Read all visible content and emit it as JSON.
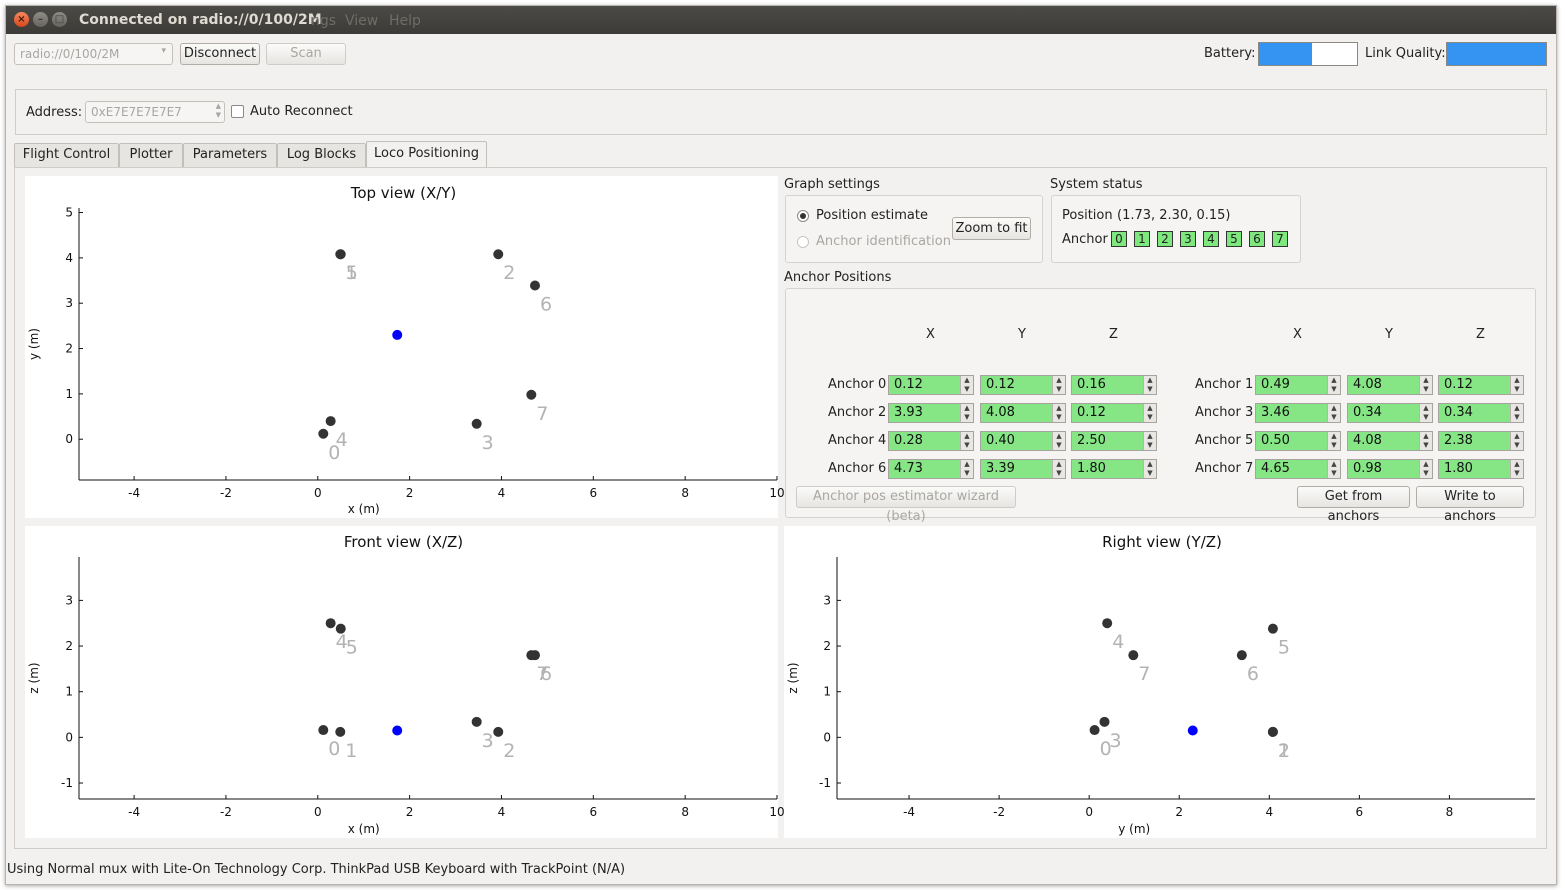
{
  "window": {
    "title": "Connected on radio://0/100/2M",
    "menus": [
      "ngs",
      "View",
      "Help"
    ]
  },
  "toolbar": {
    "radio_uri": "radio://0/100/2M",
    "disconnect": "Disconnect",
    "scan": "Scan",
    "battery_label": "Battery:",
    "battery_level": 0.54,
    "link_label": "Link Quality:",
    "link_level": 1.0
  },
  "address": {
    "label": "Address:",
    "value": "0xE7E7E7E7E7",
    "auto_reconnect": "Auto Reconnect"
  },
  "tabs": [
    "Flight Control",
    "Plotter",
    "Parameters",
    "Log Blocks",
    "Loco Positioning"
  ],
  "graph_settings": {
    "title": "Graph settings",
    "position_estimate": "Position estimate",
    "anchor_identification": "Anchor identification",
    "zoom_to_fit": "Zoom to fit"
  },
  "system_status": {
    "title": "System status",
    "position_label": "Position",
    "position_value": "(1.73, 2.30, 0.15)",
    "anchor_label": "Anchor",
    "anchors": [
      "0",
      "1",
      "2",
      "3",
      "4",
      "5",
      "6",
      "7"
    ]
  },
  "anchor_positions": {
    "title": "Anchor Positions",
    "col_x": "X",
    "col_y": "Y",
    "col_z": "Z",
    "rows": [
      {
        "name": "Anchor 0",
        "x": "0.12",
        "y": "0.12",
        "z": "0.16"
      },
      {
        "name": "Anchor 1",
        "x": "0.49",
        "y": "4.08",
        "z": "0.12"
      },
      {
        "name": "Anchor 2",
        "x": "3.93",
        "y": "4.08",
        "z": "0.12"
      },
      {
        "name": "Anchor 3",
        "x": "3.46",
        "y": "0.34",
        "z": "0.34"
      },
      {
        "name": "Anchor 4",
        "x": "0.28",
        "y": "0.40",
        "z": "2.50"
      },
      {
        "name": "Anchor 5",
        "x": "0.50",
        "y": "4.08",
        "z": "2.38"
      },
      {
        "name": "Anchor 6",
        "x": "4.73",
        "y": "3.39",
        "z": "1.80"
      },
      {
        "name": "Anchor 7",
        "x": "4.65",
        "y": "0.98",
        "z": "1.80"
      }
    ],
    "wizard": "Anchor pos estimator wizard (beta)",
    "get_from_anchors": "Get from anchors",
    "write_to_anchors": "Write to anchors"
  },
  "status_bar": "Using Normal mux with Lite-On Technology Corp. ThinkPad USB Keyboard with TrackPoint (N/A)",
  "chart_data": [
    {
      "type": "scatter",
      "title": "Top view (X/Y)",
      "xlabel": "x (m)",
      "ylabel": "y (m)",
      "xticks": [
        "-4",
        "-2",
        "0",
        "2",
        "4",
        "6",
        "8",
        "10"
      ],
      "yticks": [
        "0",
        "1",
        "2",
        "3",
        "4",
        "5"
      ],
      "xlim": [
        -5.2,
        10
      ],
      "ylim": [
        -0.9,
        5.1
      ],
      "anchor_points": [
        {
          "label": "0",
          "x": 0.12,
          "y": 0.12
        },
        {
          "label": "1",
          "x": 0.49,
          "y": 4.08
        },
        {
          "label": "2",
          "x": 3.93,
          "y": 4.08
        },
        {
          "label": "3",
          "x": 3.46,
          "y": 0.34
        },
        {
          "label": "4",
          "x": 0.28,
          "y": 0.4
        },
        {
          "label": "5",
          "x": 0.5,
          "y": 4.08
        },
        {
          "label": "6",
          "x": 4.73,
          "y": 3.39
        },
        {
          "label": "7",
          "x": 4.65,
          "y": 0.98
        }
      ],
      "position": {
        "x": 1.73,
        "y": 2.3
      },
      "anchor_color": "#333333",
      "position_color": "#0000ff"
    },
    {
      "type": "scatter",
      "title": "Front view (X/Z)",
      "xlabel": "x (m)",
      "ylabel": "z (m)",
      "xticks": [
        "-4",
        "-2",
        "0",
        "2",
        "4",
        "6",
        "8",
        "10"
      ],
      "yticks": [
        "-1",
        "0",
        "1",
        "2",
        "3"
      ],
      "xlim": [
        -5.2,
        10
      ],
      "ylim": [
        -1.35,
        3.95
      ],
      "anchor_points": [
        {
          "label": "0",
          "x": 0.12,
          "y": 0.16
        },
        {
          "label": "1",
          "x": 0.49,
          "y": 0.12
        },
        {
          "label": "2",
          "x": 3.93,
          "y": 0.12
        },
        {
          "label": "3",
          "x": 3.46,
          "y": 0.34
        },
        {
          "label": "4",
          "x": 0.28,
          "y": 2.5
        },
        {
          "label": "5",
          "x": 0.5,
          "y": 2.38
        },
        {
          "label": "6",
          "x": 4.73,
          "y": 1.8
        },
        {
          "label": "7",
          "x": 4.65,
          "y": 1.8
        }
      ],
      "position": {
        "x": 1.73,
        "y": 0.15
      },
      "anchor_color": "#333333",
      "position_color": "#0000ff"
    },
    {
      "type": "scatter",
      "title": "Right view (Y/Z)",
      "xlabel": "y (m)",
      "ylabel": "z (m)",
      "xticks": [
        "-4",
        "-2",
        "0",
        "2",
        "4",
        "6",
        "8"
      ],
      "yticks": [
        "-1",
        "0",
        "1",
        "2",
        "3"
      ],
      "xlim": [
        -5.6,
        9.9
      ],
      "ylim": [
        -1.35,
        3.95
      ],
      "anchor_points": [
        {
          "label": "0",
          "x": 0.12,
          "y": 0.16
        },
        {
          "label": "1",
          "x": 4.08,
          "y": 0.12
        },
        {
          "label": "2",
          "x": 4.08,
          "y": 0.12
        },
        {
          "label": "3",
          "x": 0.34,
          "y": 0.34
        },
        {
          "label": "4",
          "x": 0.4,
          "y": 2.5
        },
        {
          "label": "5",
          "x": 4.08,
          "y": 2.38
        },
        {
          "label": "6",
          "x": 3.39,
          "y": 1.8
        },
        {
          "label": "7",
          "x": 0.98,
          "y": 1.8
        }
      ],
      "position": {
        "x": 2.3,
        "y": 0.15
      },
      "anchor_color": "#333333",
      "position_color": "#0000ff"
    }
  ]
}
